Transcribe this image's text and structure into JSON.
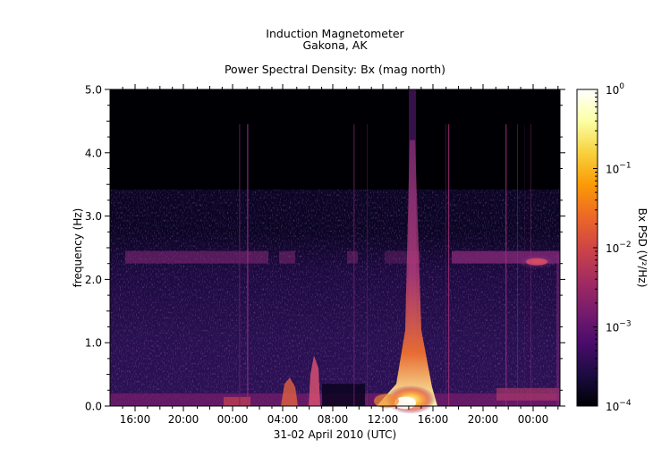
{
  "title": {
    "line1": "Induction Magnetometer",
    "line2": "Gakona, AK",
    "line3": "Power Spectral Density: Bx (mag north)"
  },
  "chart_data": {
    "type": "heatmap",
    "title": "Power Spectral Density: Bx (mag north)",
    "xlabel": "31-02 April 2010 (UTC)",
    "ylabel": "frequency (Hz)",
    "x_tick_labels": [
      "16:00",
      "20:00",
      "00:00",
      "04:00",
      "08:00",
      "12:00",
      "16:00",
      "20:00",
      "00:00"
    ],
    "y_tick_labels": [
      "0.0",
      "1.0",
      "2.0",
      "3.0",
      "4.0",
      "5.0"
    ],
    "ylim": [
      0,
      5
    ],
    "colorbar": {
      "label": "Bx PSD (V²/Hz)",
      "scale": "log",
      "range": [
        0.0001,
        1
      ],
      "tick_labels": [
        {
          "base": "10",
          "exp": "0"
        },
        {
          "base": "10",
          "exp": "−1"
        },
        {
          "base": "10",
          "exp": "−2"
        },
        {
          "base": "10",
          "exp": "−3"
        },
        {
          "base": "10",
          "exp": "−4"
        }
      ],
      "colormap": [
        "#000004",
        "#1b0c41",
        "#4a0c6b",
        "#781c6d",
        "#a52c60",
        "#cf4446",
        "#ed6925",
        "#fb9b06",
        "#f7d13d",
        "#fcffa4",
        "#ffffff"
      ]
    },
    "features": [
      {
        "name": "background",
        "f_min": 0.0,
        "f_max": 3.3,
        "level": 0.0005
      },
      {
        "name": "band_2.35Hz",
        "f_center": 2.35,
        "level": 0.003
      },
      {
        "name": "low_freq_band",
        "f_max": 0.2,
        "level": 0.01
      },
      {
        "name": "broadband_burst",
        "time": "14:00",
        "f_max": 5.0,
        "peak_level": 1.0
      }
    ]
  }
}
